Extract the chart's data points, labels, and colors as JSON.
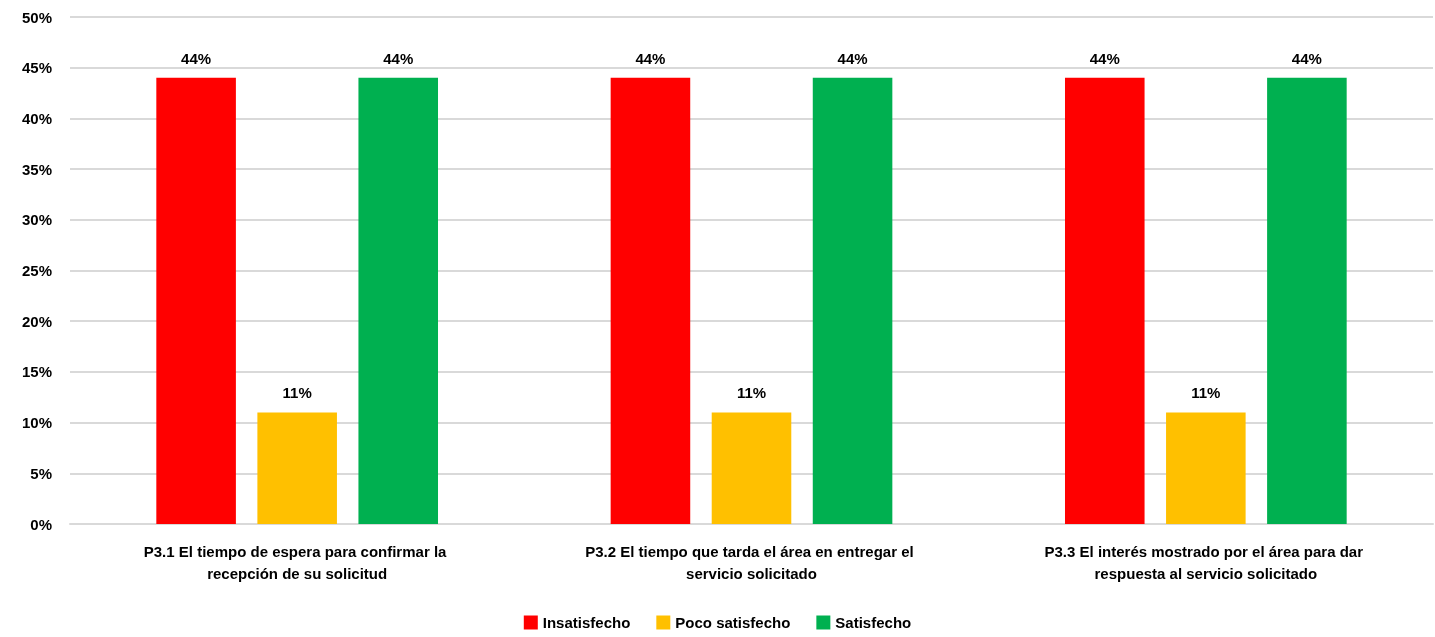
{
  "chart_data": {
    "type": "bar",
    "categories": [
      "P3.1 El tiempo de espera para confirmar la recepción de su solicitud",
      "P3.2 El tiempo que tarda el área en entregar el servicio solicitado",
      "P3.3 El interés mostrado por el área para dar respuesta al servicio solicitado"
    ],
    "series": [
      {
        "name": "Insatisfecho",
        "color": "#ff0000",
        "values": [
          44,
          44,
          44
        ],
        "value_labels": [
          "44%",
          "44%",
          "44%"
        ]
      },
      {
        "name": "Poco satisfecho",
        "color": "#ffc000",
        "values": [
          11,
          11,
          11
        ],
        "value_labels": [
          "11%",
          "11%",
          "11%"
        ]
      },
      {
        "name": "Satisfecho",
        "color": "#00b050",
        "values": [
          44,
          44,
          44
        ],
        "value_labels": [
          "44%",
          "44%",
          "44%"
        ]
      }
    ],
    "ylim": [
      0,
      50
    ],
    "yticks": [
      {
        "value": 0,
        "label": "0%"
      },
      {
        "value": 5,
        "label": "5%"
      },
      {
        "value": 10,
        "label": "10%"
      },
      {
        "value": 15,
        "label": "15%"
      },
      {
        "value": 20,
        "label": "20%"
      },
      {
        "value": 25,
        "label": "25%"
      },
      {
        "value": 30,
        "label": "30%"
      },
      {
        "value": 35,
        "label": "35%"
      },
      {
        "value": 40,
        "label": "40%"
      },
      {
        "value": 45,
        "label": "45%"
      },
      {
        "value": 50,
        "label": "50%"
      }
    ],
    "grid": "y",
    "legend": "bottom"
  }
}
